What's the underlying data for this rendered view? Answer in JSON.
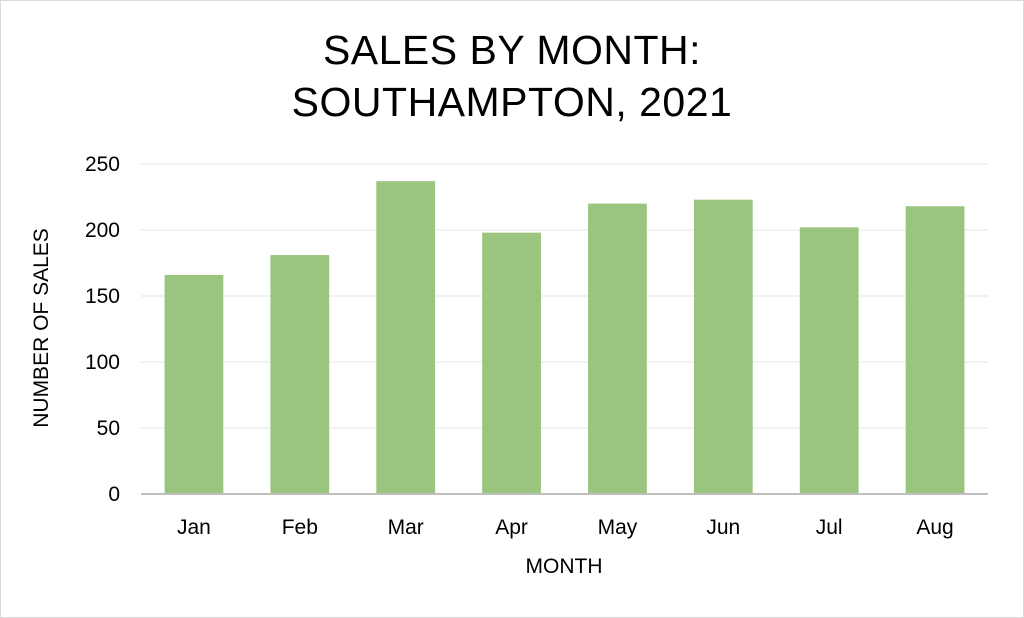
{
  "chart_data": {
    "type": "bar",
    "title": [
      "SALES BY MONTH:",
      "SOUTHAMPTON, 2021"
    ],
    "xlabel": "MONTH",
    "ylabel": "NUMBER OF SALES",
    "categories": [
      "Jan",
      "Feb",
      "Mar",
      "Apr",
      "May",
      "Jun",
      "Jul",
      "Aug"
    ],
    "values": [
      166,
      181,
      237,
      198,
      220,
      223,
      202,
      218
    ],
    "ylim": [
      0,
      250
    ],
    "yticks": [
      0,
      50,
      100,
      150,
      200,
      250
    ],
    "grid": true,
    "legend": false,
    "bar_color": "#9bc47f"
  }
}
